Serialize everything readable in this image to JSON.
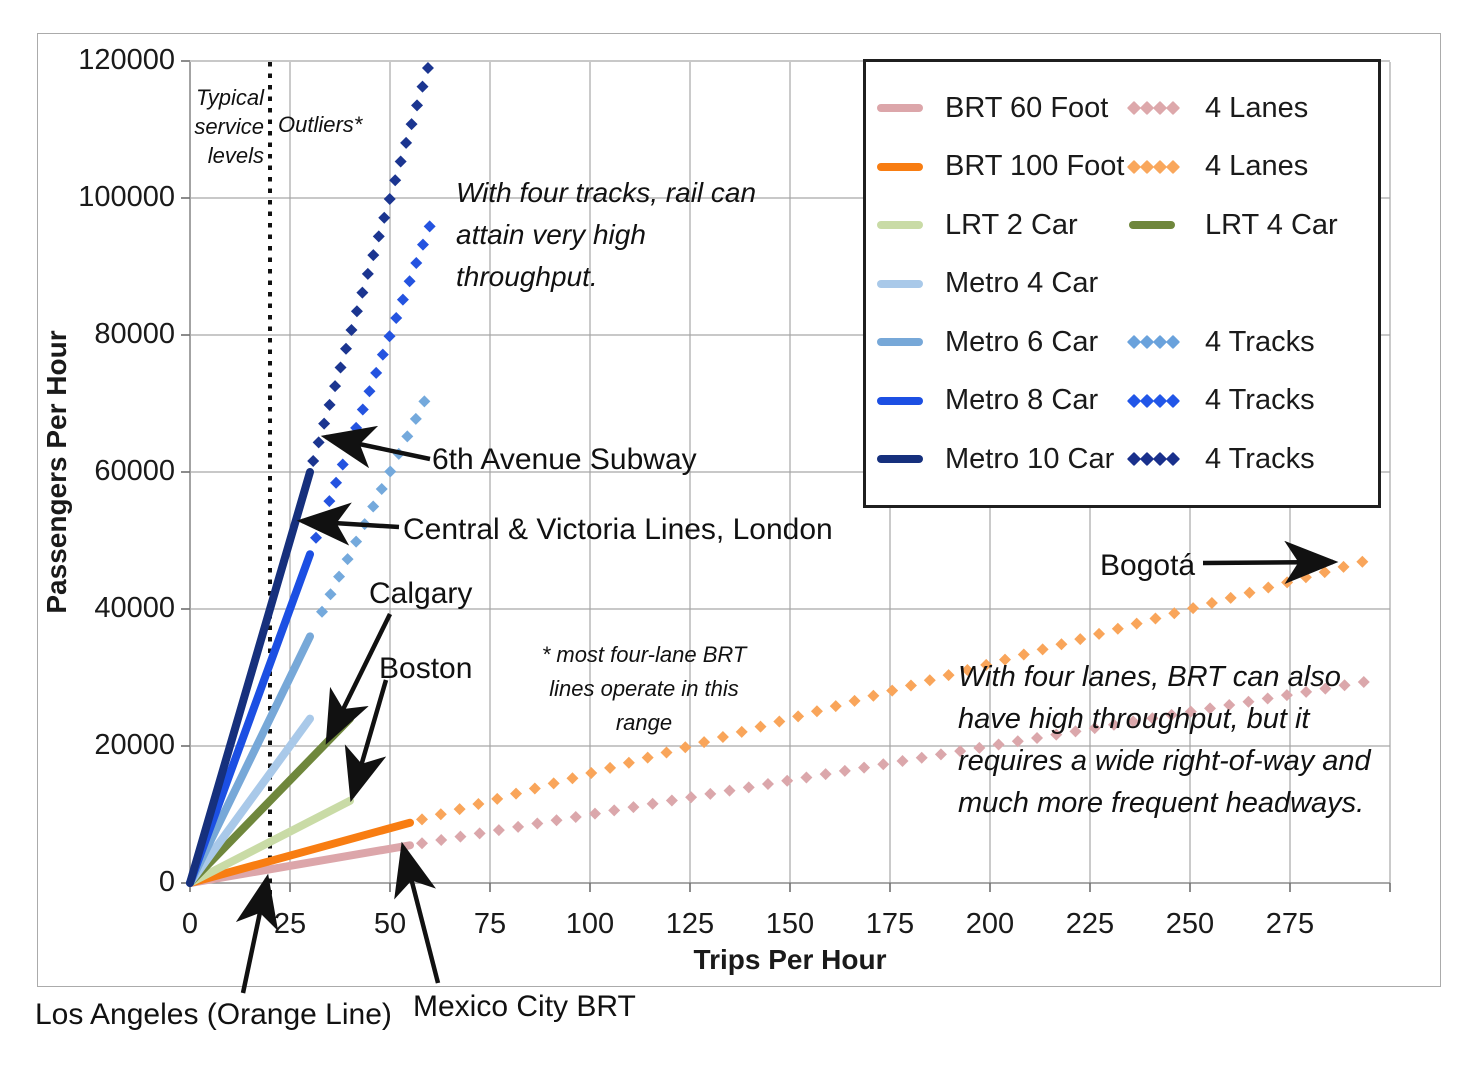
{
  "figure": {
    "x_axis_title": "Trips Per Hour",
    "y_axis_title": "Passengers Per Hour"
  },
  "chart_data": {
    "type": "line",
    "title": "",
    "xlabel": "Trips Per Hour",
    "ylabel": "Passengers Per Hour",
    "xlim": [
      0,
      300
    ],
    "ylim": [
      0,
      120000
    ],
    "grid": true,
    "legend_position": "top-right",
    "x_ticks": [
      0,
      25,
      50,
      75,
      100,
      125,
      150,
      175,
      200,
      225,
      250,
      275
    ],
    "y_ticks": [
      0,
      20000,
      40000,
      60000,
      80000,
      100000,
      120000
    ],
    "typical_service_level_x": 20,
    "series": [
      {
        "name": "BRT 60 Foot",
        "style": "solid",
        "color": "#dca6aa",
        "passengers_per_trip": 100,
        "points": [
          [
            0,
            0
          ],
          [
            55,
            5500
          ]
        ]
      },
      {
        "name": "BRT 60 Foot 4 Lanes",
        "style": "diamonds",
        "color": "#dba7ab",
        "passengers_per_trip": 100,
        "points": [
          [
            58,
            5800
          ],
          [
            296,
            29600
          ]
        ]
      },
      {
        "name": "BRT 100 Foot",
        "style": "solid",
        "color": "#f87d12",
        "passengers_per_trip": 160,
        "points": [
          [
            0,
            0
          ],
          [
            55,
            8800
          ]
        ]
      },
      {
        "name": "BRT 100 Foot 4 Lanes",
        "style": "diamonds",
        "color": "#f9a55a",
        "passengers_per_trip": 160,
        "points": [
          [
            58,
            9280
          ],
          [
            296,
            47360
          ]
        ]
      },
      {
        "name": "LRT 2 Car",
        "style": "solid",
        "color": "#c9dba6",
        "passengers_per_trip": 300,
        "points": [
          [
            0,
            0
          ],
          [
            40,
            12000
          ]
        ]
      },
      {
        "name": "LRT 4 Car",
        "style": "solid",
        "color": "#6f873c",
        "passengers_per_trip": 600,
        "points": [
          [
            0,
            0
          ],
          [
            40,
            24000
          ]
        ]
      },
      {
        "name": "Metro 4 Car",
        "style": "solid",
        "color": "#a9c9e9",
        "passengers_per_trip": 800,
        "points": [
          [
            0,
            0
          ],
          [
            30,
            24000
          ]
        ]
      },
      {
        "name": "Metro 6 Car",
        "style": "solid",
        "color": "#77a8d8",
        "passengers_per_trip": 1200,
        "points": [
          [
            0,
            0
          ],
          [
            30,
            36000
          ]
        ]
      },
      {
        "name": "Metro 6 Car 4 Tracks",
        "style": "diamonds",
        "color": "#74a9dc",
        "passengers_per_trip": 1200,
        "points": [
          [
            33,
            39600
          ],
          [
            60,
            72000
          ]
        ]
      },
      {
        "name": "Metro 8 Car",
        "style": "solid",
        "color": "#1c4fe3",
        "passengers_per_trip": 1600,
        "points": [
          [
            0,
            0
          ],
          [
            30,
            48000
          ]
        ]
      },
      {
        "name": "Metro 8 Car 4 Tracks",
        "style": "diamonds",
        "color": "#2453e0",
        "passengers_per_trip": 1600,
        "points": [
          [
            31.5,
            50400
          ],
          [
            60,
            96000
          ]
        ]
      },
      {
        "name": "Metro 10 Car",
        "style": "solid",
        "color": "#16307d",
        "passengers_per_trip": 2000,
        "points": [
          [
            0,
            0
          ],
          [
            30,
            60000
          ]
        ]
      },
      {
        "name": "Metro 10 Car 4 Tracks",
        "style": "diamonds",
        "color": "#1b3590",
        "passengers_per_trip": 2000,
        "points": [
          [
            30.8,
            61600
          ],
          [
            60,
            120000
          ]
        ]
      }
    ]
  },
  "legend": {
    "rows": [
      {
        "left": {
          "label": "BRT 60 Foot",
          "swatch": "line",
          "color": "#dca6aa"
        },
        "right": {
          "label": "4 Lanes",
          "swatch": "diamonds",
          "color": "#dda8ab"
        }
      },
      {
        "left": {
          "label": "BRT 100 Foot",
          "swatch": "line",
          "color": "#f87d12"
        },
        "right": {
          "label": "4 Lanes",
          "swatch": "diamonds",
          "color": "#f9a75c"
        }
      },
      {
        "left": {
          "label": "LRT 2 Car",
          "swatch": "line",
          "color": "#c9dba6"
        },
        "right": {
          "label": "LRT 4 Car",
          "swatch": "line",
          "color": "#6f873c"
        }
      },
      {
        "left": {
          "label": "Metro 4 Car",
          "swatch": "line",
          "color": "#a9c9e9"
        },
        "right": null
      },
      {
        "left": {
          "label": "Metro 6 Car",
          "swatch": "line",
          "color": "#77a8d8"
        },
        "right": {
          "label": "4 Tracks",
          "swatch": "diamonds",
          "color": "#6aa2dc"
        }
      },
      {
        "left": {
          "label": "Metro 8 Car",
          "swatch": "line",
          "color": "#1c4fe3"
        },
        "right": {
          "label": "4 Tracks",
          "swatch": "diamonds",
          "color": "#2156e8"
        }
      },
      {
        "left": {
          "label": "Metro 10 Car",
          "swatch": "line",
          "color": "#16307d"
        },
        "right": {
          "label": "4 Tracks",
          "swatch": "diamonds",
          "color": "#19308c"
        }
      }
    ]
  },
  "annotations": {
    "typical_service": "Typical service levels",
    "outliers": "Outliers*",
    "four_tracks_note": "With four tracks, rail can attain very high throughput.",
    "four_lane_note": "* most four-lane BRT lines operate in this range",
    "four_lanes_brt_note": "With four lanes, BRT can also have high throughput, but it requires a wide right-of-way and much more frequent headways.",
    "sixth_avenue": "6th Avenue Subway",
    "central_victoria": "Central & Victoria Lines, London",
    "calgary": "Calgary",
    "boston": "Boston",
    "bogota": "Bogotá",
    "los_angeles": "Los Angeles (Orange Line)",
    "mexico_city": "Mexico City BRT"
  }
}
